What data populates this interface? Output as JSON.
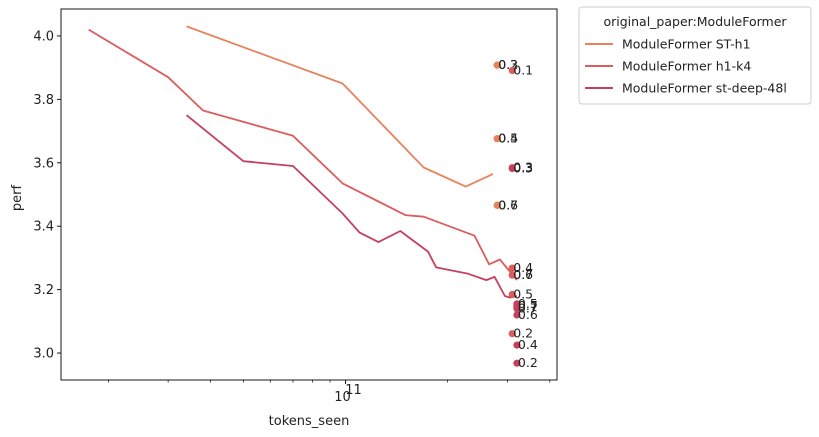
{
  "chart_data": {
    "type": "line",
    "title": "",
    "xlabel": "tokens_seen",
    "ylabel": "perf",
    "x_scale": "log",
    "xlim": [
      14500000000,
      420000000000
    ],
    "ylim": [
      2.915,
      4.085
    ],
    "x_major_tick_labels": [
      {
        "value": 100000000000,
        "base": "10",
        "exp": "11"
      }
    ],
    "y_ticks": [
      3.0,
      3.2,
      3.4,
      3.6,
      3.8,
      4.0
    ],
    "y_tick_labels": [
      "3.0",
      "3.2",
      "3.4",
      "3.6",
      "3.8",
      "4.0"
    ],
    "grid": false,
    "legend": {
      "title": "original_paper:ModuleFormer",
      "placement": "outside-upper-right"
    },
    "series": [
      {
        "name": "ModuleFormer ST-h1",
        "color": "#e8825e",
        "points": [
          [
            34000000000,
            4.03
          ],
          [
            98000000000,
            3.85
          ],
          [
            170000000000,
            3.585
          ],
          [
            226000000000,
            3.525
          ],
          [
            272000000000,
            3.565
          ]
        ]
      },
      {
        "name": "ModuleFormer h1-k4",
        "color": "#dc5d5d",
        "points": [
          [
            17500000000,
            4.02
          ],
          [
            30000000000,
            3.87
          ],
          [
            38000000000,
            3.765
          ],
          [
            70000000000,
            3.685
          ],
          [
            98000000000,
            3.535
          ],
          [
            150000000000,
            3.435
          ],
          [
            170000000000,
            3.43
          ],
          [
            240000000000,
            3.37
          ],
          [
            265000000000,
            3.28
          ],
          [
            285000000000,
            3.295
          ],
          [
            320000000000,
            3.23
          ]
        ]
      },
      {
        "name": "ModuleFormer st-deep-48l",
        "color": "#c6405e",
        "points": [
          [
            34000000000,
            3.75
          ],
          [
            50000000000,
            3.605
          ],
          [
            70000000000,
            3.59
          ],
          [
            98000000000,
            3.44
          ],
          [
            110000000000,
            3.38
          ],
          [
            125000000000,
            3.35
          ],
          [
            145000000000,
            3.385
          ],
          [
            175000000000,
            3.32
          ],
          [
            185000000000,
            3.27
          ],
          [
            230000000000,
            3.25
          ],
          [
            260000000000,
            3.23
          ],
          [
            275000000000,
            3.24
          ],
          [
            295000000000,
            3.18
          ],
          [
            305000000000,
            3.175
          ],
          [
            320000000000,
            3.18
          ]
        ]
      }
    ],
    "scatter": [
      {
        "x": 280000000000,
        "y": 3.908,
        "label": "0.3",
        "color": "#e8825e"
      },
      {
        "x": 280000000000,
        "y": 3.908,
        "label": "0.2",
        "color": "#e8825e"
      },
      {
        "x": 310000000000,
        "y": 3.891,
        "label": "0.1",
        "color": "#dc5d5d"
      },
      {
        "x": 280000000000,
        "y": 3.676,
        "label": "0.5",
        "color": "#e8825e"
      },
      {
        "x": 280000000000,
        "y": 3.676,
        "label": "0.4",
        "color": "#e8825e"
      },
      {
        "x": 310000000000,
        "y": 3.585,
        "label": "0.3",
        "color": "#dc5d5d"
      },
      {
        "x": 310000000000,
        "y": 3.582,
        "label": "0.3",
        "color": "#c6405e"
      },
      {
        "x": 280000000000,
        "y": 3.466,
        "label": "0.7",
        "color": "#e8825e"
      },
      {
        "x": 280000000000,
        "y": 3.466,
        "label": "0.6",
        "color": "#e8825e"
      },
      {
        "x": 310000000000,
        "y": 3.268,
        "label": "0.4",
        "color": "#dc5d5d"
      },
      {
        "x": 310000000000,
        "y": 3.246,
        "label": "0.7",
        "color": "#dc5d5d"
      },
      {
        "x": 310000000000,
        "y": 3.246,
        "label": "0.6",
        "color": "#dc5d5d"
      },
      {
        "x": 310000000000,
        "y": 3.185,
        "label": "0.5",
        "color": "#dc5d5d"
      },
      {
        "x": 320000000000,
        "y": 3.155,
        "label": "0.5",
        "color": "#c6405e"
      },
      {
        "x": 320000000000,
        "y": 3.148,
        "label": "0.7",
        "color": "#c6405e"
      },
      {
        "x": 320000000000,
        "y": 3.14,
        "label": "0.7",
        "color": "#c6405e"
      },
      {
        "x": 320000000000,
        "y": 3.12,
        "label": "0.6",
        "color": "#c6405e"
      },
      {
        "x": 310000000000,
        "y": 3.061,
        "label": "0.2",
        "color": "#dc5d5d"
      },
      {
        "x": 320000000000,
        "y": 3.025,
        "label": "0.4",
        "color": "#c6405e"
      },
      {
        "x": 320000000000,
        "y": 2.968,
        "label": "0.2",
        "color": "#c6405e"
      }
    ]
  }
}
